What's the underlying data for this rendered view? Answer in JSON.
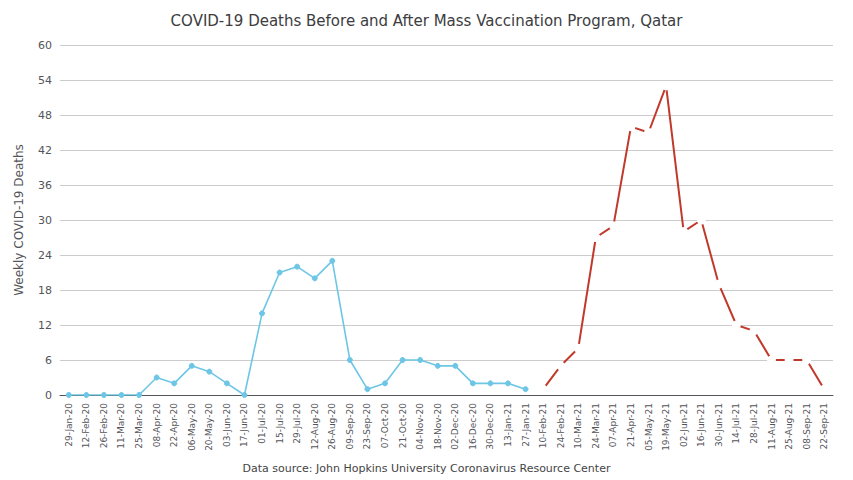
{
  "chart_data": {
    "type": "line",
    "title": "COVID-19 Deaths Before and After Mass Vaccination Program, Qatar",
    "ylabel": "Weekly COVID-19 Deaths",
    "annotations": [
      "Data source: John Hopkins University Coronavirus Resource Center"
    ],
    "categories": [
      "29-Jan-20",
      "12-Feb-20",
      "26-Feb-20",
      "11-Mar-20",
      "25-Mar-20",
      "08-Apr-20",
      "22-Apr-20",
      "06-May-20",
      "20-May-20",
      "03-Jun-20",
      "17-Jun-20",
      "01-Jul-20",
      "15-Jul-20",
      "29-Jul-20",
      "12-Aug-20",
      "26-Aug-20",
      "09-Sep-20",
      "23-Sep-20",
      "07-Oct-20",
      "21-Oct-20",
      "04-Nov-20",
      "18-Nov-20",
      "02-Dec-20",
      "16-Dec-20",
      "30-Dec-20",
      "13-Jan-21",
      "27-Jan-21",
      "10-Feb-21",
      "24-Feb-21",
      "10-Mar-21",
      "24-Mar-21",
      "07-Apr-21",
      "21-Apr-21",
      "05-May-21",
      "19-May-21",
      "02-Jun-21",
      "16-Jun-21",
      "30-Jun-21",
      "14-Jul-21",
      "28-Jul-21",
      "11-Aug-21",
      "25-Aug-21",
      "08-Sep-21",
      "22-Sep-21"
    ],
    "series": [
      {
        "color": "#6ec6e6",
        "marker": "circle",
        "values": [
          0,
          0,
          0,
          0,
          0,
          3,
          2,
          5,
          4,
          2,
          0,
          14,
          21,
          22,
          20,
          23,
          6,
          1,
          2,
          6,
          6,
          5,
          5,
          2,
          2,
          2,
          1,
          null,
          null,
          null,
          null,
          null,
          null,
          null,
          null,
          null,
          null,
          null,
          null,
          null,
          null,
          null,
          null,
          null
        ]
      },
      {
        "color": "#c0392b",
        "marker": "open_circle",
        "values": [
          null,
          null,
          null,
          null,
          null,
          null,
          null,
          null,
          null,
          null,
          null,
          null,
          null,
          null,
          null,
          null,
          null,
          null,
          null,
          null,
          null,
          null,
          null,
          null,
          null,
          null,
          null,
          1,
          5,
          8,
          27,
          29,
          46,
          45,
          53,
          28,
          30,
          19,
          12,
          11,
          6,
          6,
          6,
          1
        ]
      }
    ],
    "ylim": [
      0,
      60
    ],
    "yticks": [
      0,
      6,
      12,
      18,
      24,
      30,
      36,
      42,
      48,
      54,
      60
    ],
    "grid": true
  }
}
